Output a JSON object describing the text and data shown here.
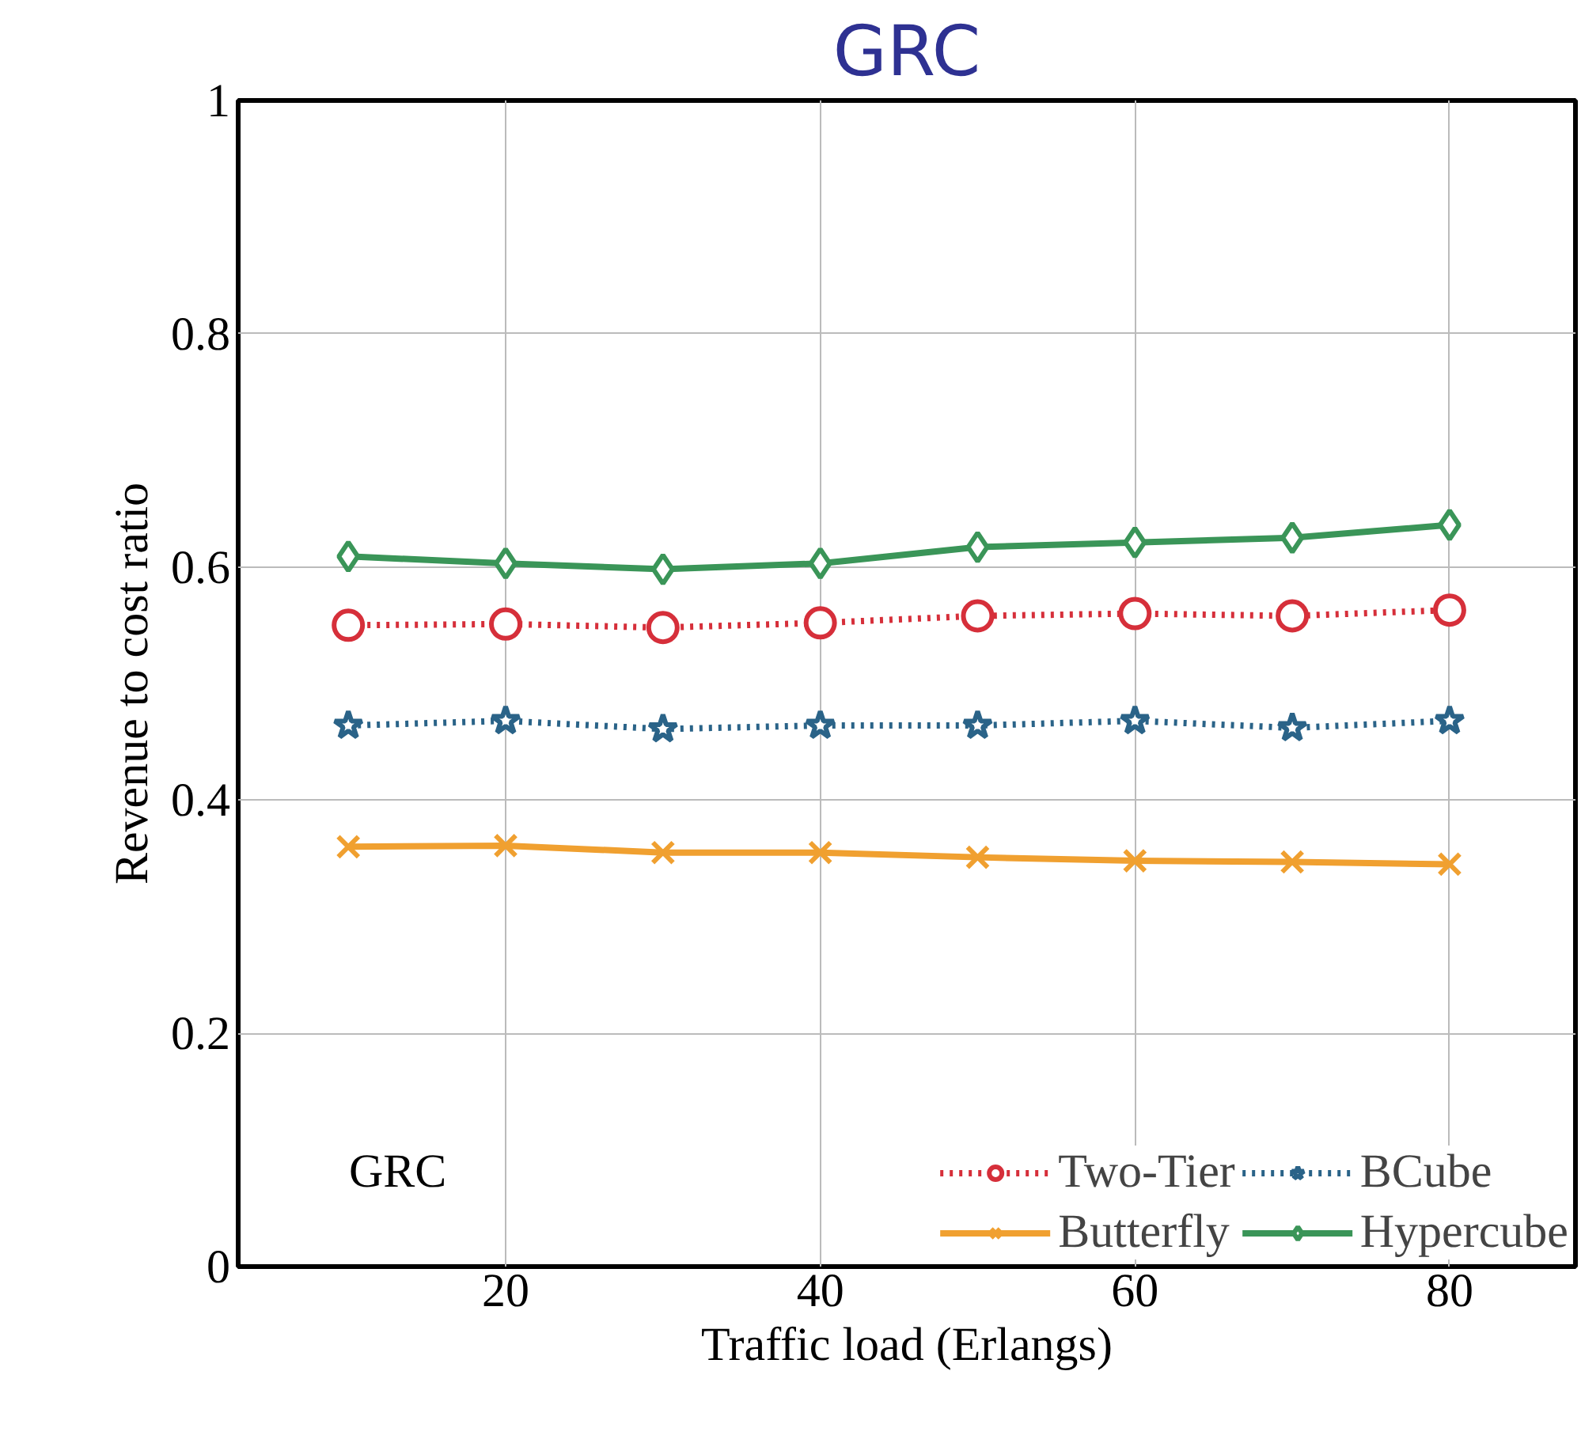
{
  "chart_data": {
    "type": "line",
    "title": "GRC",
    "xlabel": "Traffic load (Erlangs)",
    "ylabel": "Revenue to cost ratio",
    "x": [
      10,
      20,
      30,
      40,
      50,
      60,
      70,
      80
    ],
    "series": [
      {
        "name": "Two-Tier",
        "color": "#d62f3a",
        "marker": "circle",
        "line_style": "dotted",
        "values": [
          0.55,
          0.551,
          0.548,
          0.552,
          0.558,
          0.56,
          0.558,
          0.563
        ]
      },
      {
        "name": "BCube",
        "color": "#2a6388",
        "marker": "star",
        "line_style": "dotted",
        "values": [
          0.464,
          0.468,
          0.461,
          0.464,
          0.464,
          0.468,
          0.462,
          0.468
        ]
      },
      {
        "name": "Butterfly",
        "color": "#f0a030",
        "marker": "cross",
        "line_style": "solid",
        "values": [
          0.36,
          0.361,
          0.355,
          0.355,
          0.351,
          0.348,
          0.347,
          0.345
        ]
      },
      {
        "name": "Hypercube",
        "color": "#3a9558",
        "marker": "diamond",
        "line_style": "solid",
        "values": [
          0.609,
          0.603,
          0.598,
          0.603,
          0.617,
          0.621,
          0.625,
          0.636
        ]
      }
    ],
    "xlim": [
      3,
      88
    ],
    "ylim": [
      0,
      1
    ],
    "xticks": [
      20,
      40,
      60,
      80
    ],
    "yticks": [
      0,
      0.2,
      0.4,
      0.6,
      0.8,
      1
    ],
    "grid": true,
    "legend": "bottom right",
    "annotations": [
      "GRC"
    ]
  }
}
